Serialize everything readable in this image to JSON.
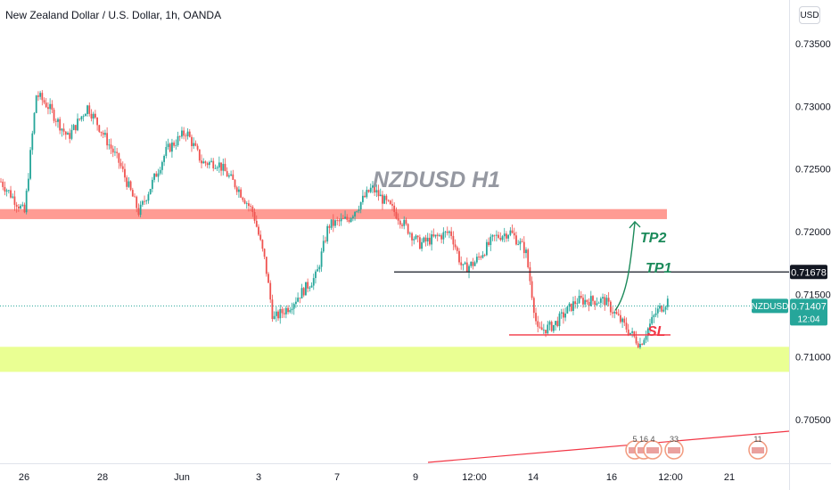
{
  "header": {
    "title": "New Zealand Dollar / U.S. Dollar, 1h, OANDA",
    "currency_button": "USD"
  },
  "price_label": {
    "symbol": "NZDUSD",
    "price": "0.71407",
    "countdown": "12:04"
  },
  "tp1_label": {
    "price": "0.71678"
  },
  "colors": {
    "up": "#26a69a",
    "down": "#ef5350",
    "resistance_zone": "#ff8a80",
    "support_zone": "#e6ff80",
    "tp_text": "#1b8a5a",
    "sl_text": "#f23645",
    "price_tag": "#26a69a"
  },
  "events": [
    {
      "label": "5"
    },
    {
      "label": "16"
    },
    {
      "label": "4"
    },
    {
      "label": "33"
    },
    {
      "label": "11"
    }
  ],
  "chart_data": {
    "type": "candlestick",
    "title": "New Zealand Dollar / U.S. Dollar, 1h, OANDA",
    "ylim": [
      0.7015,
      0.7385
    ],
    "yticks": [
      {
        "value": 0.735,
        "label": "0.73500"
      },
      {
        "value": 0.73,
        "label": "0.73000"
      },
      {
        "value": 0.725,
        "label": "0.72500"
      },
      {
        "value": 0.72,
        "label": "0.72000"
      },
      {
        "value": 0.715,
        "label": "0.71500"
      },
      {
        "value": 0.71,
        "label": "0.71000"
      },
      {
        "value": 0.705,
        "label": "0.70500"
      }
    ],
    "xticks": [
      "26",
      "28",
      "Jun",
      "3",
      "7",
      "9",
      "12:00",
      "14",
      "16",
      "12:00",
      "21"
    ],
    "price_path": [
      [
        0,
        0.724
      ],
      [
        0.03,
        0.7215
      ],
      [
        0.045,
        0.731
      ],
      [
        0.06,
        0.73
      ],
      [
        0.085,
        0.7275
      ],
      [
        0.11,
        0.73
      ],
      [
        0.15,
        0.7255
      ],
      [
        0.175,
        0.7215
      ],
      [
        0.21,
        0.7265
      ],
      [
        0.235,
        0.728
      ],
      [
        0.255,
        0.7255
      ],
      [
        0.275,
        0.7255
      ],
      [
        0.3,
        0.7235
      ],
      [
        0.32,
        0.7215
      ],
      [
        0.335,
        0.7175
      ],
      [
        0.345,
        0.713
      ],
      [
        0.365,
        0.714
      ],
      [
        0.4,
        0.7165
      ],
      [
        0.415,
        0.7205
      ],
      [
        0.44,
        0.721
      ],
      [
        0.47,
        0.7235
      ],
      [
        0.5,
        0.7215
      ],
      [
        0.53,
        0.719
      ],
      [
        0.57,
        0.72
      ],
      [
        0.585,
        0.717
      ],
      [
        0.6,
        0.7175
      ],
      [
        0.625,
        0.7195
      ],
      [
        0.645,
        0.72
      ],
      [
        0.665,
        0.7185
      ],
      [
        0.68,
        0.712
      ],
      [
        0.7,
        0.7125
      ],
      [
        0.73,
        0.7145
      ],
      [
        0.765,
        0.7145
      ],
      [
        0.79,
        0.7125
      ],
      [
        0.81,
        0.711
      ],
      [
        0.83,
        0.7135
      ],
      [
        0.845,
        0.7145
      ]
    ],
    "annotations": {
      "label": "NZDUSD H1",
      "resistance_zone": [
        0.721,
        0.7218
      ],
      "support_zone": [
        0.7088,
        0.7108
      ],
      "tp1": {
        "label": "TP1",
        "price": 0.71678
      },
      "tp2": {
        "label": "TP2",
        "price": 0.721
      },
      "sl": {
        "label": "SL",
        "price": 0.71175
      },
      "current_price": 0.71407
    }
  }
}
